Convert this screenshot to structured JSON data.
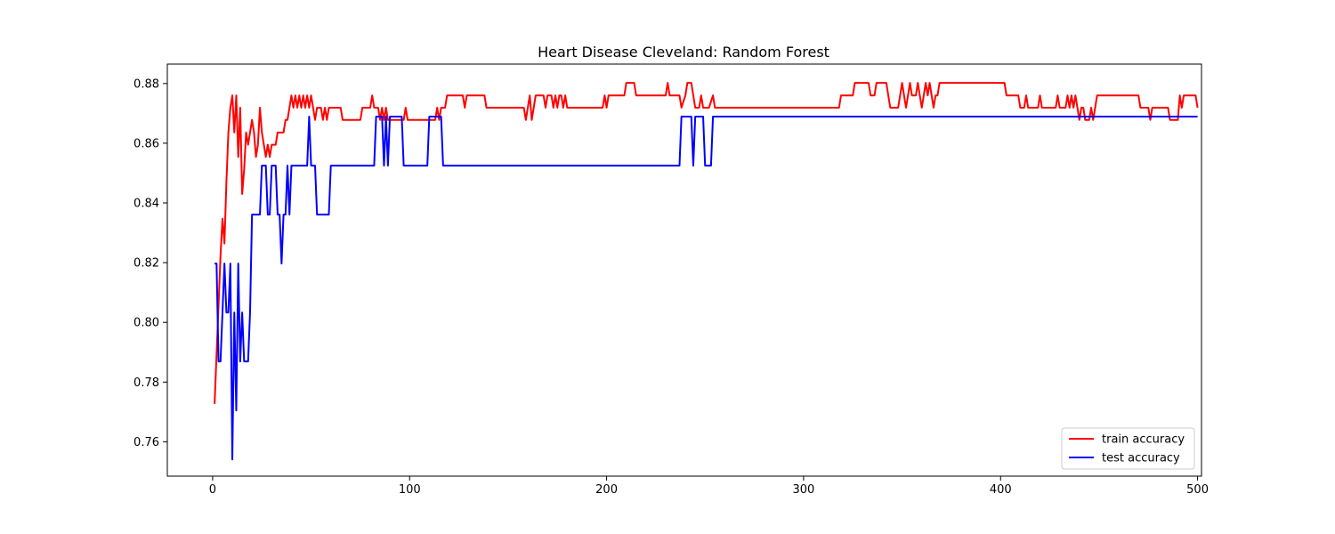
{
  "chart_data": {
    "type": "line",
    "title": "Heart Disease Cleveland: Random Forest",
    "xlabel": "",
    "ylabel": "",
    "xlim": [
      -23,
      502
    ],
    "ylim": [
      0.7485,
      0.8865
    ],
    "xticks": [
      0,
      100,
      200,
      300,
      400,
      500
    ],
    "yticks": [
      0.76,
      0.78,
      0.8,
      0.82,
      0.84,
      0.86,
      0.88
    ],
    "ytick_labels": [
      "0.76",
      "0.78",
      "0.80",
      "0.82",
      "0.84",
      "0.86",
      "0.88"
    ],
    "grid": false,
    "legend_position": "lower-right",
    "series": [
      {
        "name": "train accuracy",
        "color": "#ff0000",
        "points": [
          [
            1,
            0.7727
          ],
          [
            2,
            0.7893
          ],
          [
            3,
            0.8058
          ],
          [
            4,
            0.8223
          ],
          [
            5,
            0.8347
          ],
          [
            6,
            0.8264
          ],
          [
            7,
            0.8471
          ],
          [
            8,
            0.8636
          ],
          [
            9,
            0.8719
          ],
          [
            10,
            0.876
          ],
          [
            11,
            0.8636
          ],
          [
            12,
            0.876
          ],
          [
            13,
            0.8554
          ],
          [
            14,
            0.8719
          ],
          [
            15,
            0.843
          ],
          [
            16,
            0.8512
          ],
          [
            17,
            0.8636
          ],
          [
            18,
            0.8595
          ],
          [
            19,
            0.8636
          ],
          [
            20,
            0.8678
          ],
          [
            21,
            0.8636
          ],
          [
            22,
            0.8554
          ],
          [
            23,
            0.8595
          ],
          [
            24,
            0.8719
          ],
          [
            25,
            0.8636
          ],
          [
            26,
            0.8595
          ],
          [
            27,
            0.8554
          ],
          [
            28,
            0.8595
          ],
          [
            29,
            0.8554
          ],
          [
            30,
            0.8595
          ],
          [
            32,
            0.8595
          ],
          [
            33,
            0.8636
          ],
          [
            36,
            0.8636
          ],
          [
            37,
            0.8678
          ],
          [
            38,
            0.8678
          ],
          [
            39,
            0.8719
          ],
          [
            40,
            0.876
          ],
          [
            41,
            0.8719
          ],
          [
            42,
            0.876
          ],
          [
            43,
            0.8719
          ],
          [
            44,
            0.876
          ],
          [
            45,
            0.8719
          ],
          [
            46,
            0.876
          ],
          [
            47,
            0.8719
          ],
          [
            48,
            0.876
          ],
          [
            49,
            0.8719
          ],
          [
            50,
            0.876
          ],
          [
            51,
            0.8719
          ],
          [
            52,
            0.8678
          ],
          [
            53,
            0.8719
          ],
          [
            55,
            0.8719
          ],
          [
            56,
            0.8678
          ],
          [
            57,
            0.8719
          ],
          [
            58,
            0.8678
          ],
          [
            59,
            0.8719
          ],
          [
            60,
            0.8719
          ],
          [
            65,
            0.8719
          ],
          [
            66,
            0.8678
          ],
          [
            75,
            0.8678
          ],
          [
            76,
            0.8719
          ],
          [
            80,
            0.8719
          ],
          [
            81,
            0.876
          ],
          [
            82,
            0.8719
          ],
          [
            84,
            0.8719
          ],
          [
            85,
            0.8678
          ],
          [
            86,
            0.8719
          ],
          [
            87,
            0.8678
          ],
          [
            88,
            0.8719
          ],
          [
            89,
            0.8678
          ],
          [
            97,
            0.8678
          ],
          [
            98,
            0.8719
          ],
          [
            99,
            0.8678
          ],
          [
            113,
            0.8678
          ],
          [
            114,
            0.8719
          ],
          [
            115,
            0.8678
          ],
          [
            116,
            0.8719
          ],
          [
            118,
            0.8719
          ],
          [
            119,
            0.876
          ],
          [
            127,
            0.876
          ],
          [
            128,
            0.8719
          ],
          [
            129,
            0.876
          ],
          [
            138,
            0.876
          ],
          [
            139,
            0.8719
          ],
          [
            158,
            0.8719
          ],
          [
            159,
            0.8678
          ],
          [
            160,
            0.8719
          ],
          [
            161,
            0.876
          ],
          [
            162,
            0.8678
          ],
          [
            163,
            0.8719
          ],
          [
            164,
            0.876
          ],
          [
            168,
            0.876
          ],
          [
            169,
            0.8719
          ],
          [
            170,
            0.876
          ],
          [
            172,
            0.876
          ],
          [
            173,
            0.8719
          ],
          [
            174,
            0.876
          ],
          [
            175,
            0.8719
          ],
          [
            176,
            0.876
          ],
          [
            177,
            0.876
          ],
          [
            178,
            0.8719
          ],
          [
            179,
            0.876
          ],
          [
            180,
            0.8719
          ],
          [
            198,
            0.8719
          ],
          [
            199,
            0.876
          ],
          [
            200,
            0.8719
          ],
          [
            201,
            0.876
          ],
          [
            209,
            0.876
          ],
          [
            210,
            0.8802
          ],
          [
            214,
            0.8802
          ],
          [
            215,
            0.876
          ],
          [
            230,
            0.876
          ],
          [
            231,
            0.8802
          ],
          [
            232,
            0.876
          ],
          [
            237,
            0.876
          ],
          [
            238,
            0.8719
          ],
          [
            240,
            0.876
          ],
          [
            241,
            0.8802
          ],
          [
            243,
            0.8802
          ],
          [
            244,
            0.876
          ],
          [
            245,
            0.8719
          ],
          [
            247,
            0.8719
          ],
          [
            248,
            0.876
          ],
          [
            249,
            0.8719
          ],
          [
            252,
            0.8719
          ],
          [
            254,
            0.876
          ],
          [
            255,
            0.8719
          ],
          [
            318,
            0.8719
          ],
          [
            319,
            0.876
          ],
          [
            325,
            0.876
          ],
          [
            326,
            0.8802
          ],
          [
            333,
            0.8802
          ],
          [
            334,
            0.876
          ],
          [
            336,
            0.876
          ],
          [
            337,
            0.8802
          ],
          [
            342,
            0.8802
          ],
          [
            343,
            0.876
          ],
          [
            344,
            0.8719
          ],
          [
            348,
            0.8719
          ],
          [
            349,
            0.876
          ],
          [
            350,
            0.8802
          ],
          [
            351,
            0.876
          ],
          [
            352,
            0.8719
          ],
          [
            353,
            0.876
          ],
          [
            354,
            0.8802
          ],
          [
            355,
            0.876
          ],
          [
            357,
            0.876
          ],
          [
            358,
            0.8802
          ],
          [
            359,
            0.876
          ],
          [
            360,
            0.8719
          ],
          [
            361,
            0.876
          ],
          [
            362,
            0.8802
          ],
          [
            363,
            0.876
          ],
          [
            364,
            0.8802
          ],
          [
            365,
            0.876
          ],
          [
            366,
            0.8719
          ],
          [
            367,
            0.876
          ],
          [
            368,
            0.876
          ],
          [
            369,
            0.8802
          ],
          [
            402,
            0.8802
          ],
          [
            403,
            0.876
          ],
          [
            409,
            0.876
          ],
          [
            410,
            0.8719
          ],
          [
            412,
            0.8719
          ],
          [
            413,
            0.876
          ],
          [
            414,
            0.8719
          ],
          [
            419,
            0.8719
          ],
          [
            420,
            0.876
          ],
          [
            421,
            0.8719
          ],
          [
            428,
            0.8719
          ],
          [
            429,
            0.876
          ],
          [
            430,
            0.8719
          ],
          [
            433,
            0.8719
          ],
          [
            434,
            0.876
          ],
          [
            435,
            0.8719
          ],
          [
            436,
            0.876
          ],
          [
            437,
            0.8719
          ],
          [
            438,
            0.876
          ],
          [
            439,
            0.8719
          ],
          [
            440,
            0.8678
          ],
          [
            441,
            0.8719
          ],
          [
            442,
            0.8719
          ],
          [
            443,
            0.8678
          ],
          [
            445,
            0.8678
          ],
          [
            446,
            0.8719
          ],
          [
            447,
            0.8678
          ],
          [
            448,
            0.8719
          ],
          [
            449,
            0.876
          ],
          [
            470,
            0.876
          ],
          [
            471,
            0.8719
          ],
          [
            475,
            0.8719
          ],
          [
            476,
            0.8678
          ],
          [
            477,
            0.8719
          ],
          [
            485,
            0.8719
          ],
          [
            486,
            0.8678
          ],
          [
            490,
            0.8678
          ],
          [
            491,
            0.876
          ],
          [
            492,
            0.8719
          ],
          [
            493,
            0.876
          ],
          [
            499,
            0.876
          ],
          [
            500,
            0.8719
          ]
        ]
      },
      {
        "name": "test accuracy",
        "color": "#0000ff",
        "points": [
          [
            1,
            0.8197
          ],
          [
            2,
            0.8197
          ],
          [
            3,
            0.7869
          ],
          [
            4,
            0.7869
          ],
          [
            5,
            0.8033
          ],
          [
            6,
            0.8197
          ],
          [
            7,
            0.8033
          ],
          [
            8,
            0.8033
          ],
          [
            9,
            0.8197
          ],
          [
            10,
            0.7541
          ],
          [
            11,
            0.8033
          ],
          [
            12,
            0.7705
          ],
          [
            13,
            0.8197
          ],
          [
            14,
            0.7869
          ],
          [
            15,
            0.8033
          ],
          [
            16,
            0.7869
          ],
          [
            17,
            0.7869
          ],
          [
            18,
            0.7869
          ],
          [
            19,
            0.8033
          ],
          [
            20,
            0.8361
          ],
          [
            21,
            0.8361
          ],
          [
            24,
            0.8361
          ],
          [
            25,
            0.8525
          ],
          [
            26,
            0.8525
          ],
          [
            27,
            0.8525
          ],
          [
            28,
            0.8361
          ],
          [
            29,
            0.8361
          ],
          [
            30,
            0.8525
          ],
          [
            31,
            0.8525
          ],
          [
            32,
            0.8525
          ],
          [
            33,
            0.8361
          ],
          [
            34,
            0.8361
          ],
          [
            35,
            0.8197
          ],
          [
            36,
            0.8361
          ],
          [
            37,
            0.8361
          ],
          [
            38,
            0.8525
          ],
          [
            39,
            0.8361
          ],
          [
            40,
            0.8525
          ],
          [
            48,
            0.8525
          ],
          [
            49,
            0.8689
          ],
          [
            50,
            0.8525
          ],
          [
            52,
            0.8525
          ],
          [
            53,
            0.8361
          ],
          [
            59,
            0.8361
          ],
          [
            60,
            0.8525
          ],
          [
            82,
            0.8525
          ],
          [
            83,
            0.8689
          ],
          [
            86,
            0.8689
          ],
          [
            87,
            0.8525
          ],
          [
            88,
            0.8689
          ],
          [
            89,
            0.8525
          ],
          [
            90,
            0.8689
          ],
          [
            96,
            0.8689
          ],
          [
            97,
            0.8525
          ],
          [
            109,
            0.8525
          ],
          [
            110,
            0.8689
          ],
          [
            116,
            0.8689
          ],
          [
            117,
            0.8525
          ],
          [
            237,
            0.8525
          ],
          [
            238,
            0.8689
          ],
          [
            243,
            0.8689
          ],
          [
            244,
            0.8525
          ],
          [
            245,
            0.8689
          ],
          [
            249,
            0.8689
          ],
          [
            250,
            0.8525
          ],
          [
            253,
            0.8525
          ],
          [
            254,
            0.8689
          ],
          [
            500,
            0.8689
          ]
        ]
      }
    ]
  }
}
